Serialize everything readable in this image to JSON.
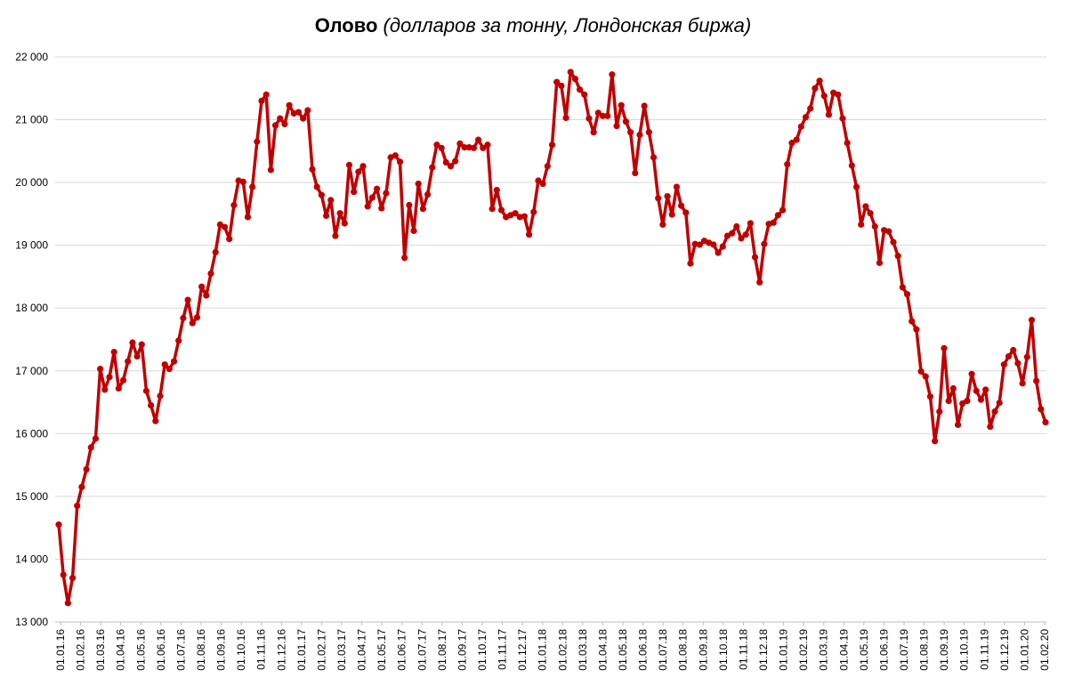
{
  "chart_data": {
    "type": "line",
    "title": "Олово",
    "subtitle": "(долларов за тонну, Лондонская биржа)",
    "xlabel": "",
    "ylabel": "",
    "ylim": [
      13000,
      22000
    ],
    "y_ticks": [
      13000,
      14000,
      15000,
      16000,
      17000,
      18000,
      19000,
      20000,
      21000,
      22000
    ],
    "y_tick_labels": [
      "13 000",
      "14 000",
      "15 000",
      "16 000",
      "17 000",
      "18 000",
      "19 000",
      "20 000",
      "21 000",
      "22 000"
    ],
    "x_tick_labels": [
      "01.01.16",
      "01.02.16",
      "01.03.16",
      "01.04.16",
      "01.05.16",
      "01.06.16",
      "01.07.16",
      "01.08.16",
      "01.09.16",
      "01.10.16",
      "01.11.16",
      "01.12.16",
      "01.01.17",
      "01.02.17",
      "01.03.17",
      "01.04.17",
      "01.05.17",
      "01.06.17",
      "01.07.17",
      "01.08.17",
      "01.09.17",
      "01.10.17",
      "01.11.17",
      "01.12.17",
      "01.01.18",
      "01.02.18",
      "01.03.18",
      "01.04.18",
      "01.05.18",
      "01.06.18",
      "01.07.18",
      "01.08.18",
      "01.09.18",
      "01.10.18",
      "01.11.18",
      "01.12.18",
      "01.01.19",
      "01.02.19",
      "01.03.19",
      "01.04.19",
      "01.05.19",
      "01.06.19",
      "01.07.19",
      "01.08.19",
      "01.09.19",
      "01.10.19",
      "01.11.19",
      "01.12.19",
      "01.01.20",
      "01.02.20"
    ],
    "x_range": [
      "01.01.16",
      "01.02.20"
    ],
    "grid": true,
    "legend": "none",
    "line_color": "#c00000",
    "series": [
      {
        "values": [
          14550,
          13750,
          13300,
          13700,
          14850,
          15150,
          15430,
          15780,
          15920,
          17030,
          16700,
          16900,
          17300,
          16720,
          16850,
          17150,
          17450,
          17230,
          17420,
          16680,
          16450,
          16200,
          16600,
          17100,
          17030,
          17150,
          17480,
          17840,
          18130,
          17760,
          17850,
          18340,
          18200,
          18550,
          18890,
          19330,
          19290,
          19100,
          19640,
          20030,
          20010,
          19450,
          19930,
          20650,
          21300,
          21400,
          20200,
          20910,
          21020,
          20930,
          21230,
          21100,
          21120,
          21020,
          21150,
          20210,
          19930,
          19800,
          19470,
          19720,
          19150,
          19510,
          19350,
          20280,
          19850,
          20170,
          20260,
          19620,
          19760,
          19900,
          19590,
          19830,
          20400,
          20430,
          20330,
          18800,
          19640,
          19230,
          19980,
          19580,
          19810,
          20240,
          20600,
          20550,
          20320,
          20260,
          20340,
          20620,
          20560,
          20560,
          20550,
          20680,
          20550,
          20600,
          19580,
          19880,
          19560,
          19450,
          19480,
          19510,
          19450,
          19460,
          19170,
          19530,
          20030,
          19980,
          20260,
          20600,
          21600,
          21540,
          21030,
          21760,
          21650,
          21480,
          21400,
          21020,
          20800,
          21110,
          21060,
          21060,
          21720,
          20900,
          21230,
          20970,
          20800,
          20150,
          20760,
          21220,
          20800,
          20400,
          19750,
          19330,
          19780,
          19490,
          19930,
          19630,
          19520,
          18710,
          19020,
          19010,
          19070,
          19040,
          19010,
          18880,
          18980,
          19150,
          19190,
          19300,
          19110,
          19170,
          19350,
          18810,
          18410,
          19020,
          19340,
          19360,
          19480,
          19560,
          20290,
          20630,
          20680,
          20890,
          21040,
          21180,
          21500,
          21620,
          21380,
          21080,
          21430,
          21400,
          21020,
          20630,
          20270,
          19930,
          19330,
          19620,
          19510,
          19300,
          18720,
          19240,
          19220,
          19050,
          18830,
          18330,
          18220,
          17790,
          17660,
          16990,
          16910,
          16590,
          15880,
          16350,
          17360,
          16520,
          16720,
          16140,
          16480,
          16520,
          16950,
          16680,
          16540,
          16700,
          16110,
          16350,
          16490,
          17100,
          17230,
          17330,
          17120,
          16800,
          17220,
          17810,
          16840,
          16390,
          16180
        ]
      }
    ]
  }
}
